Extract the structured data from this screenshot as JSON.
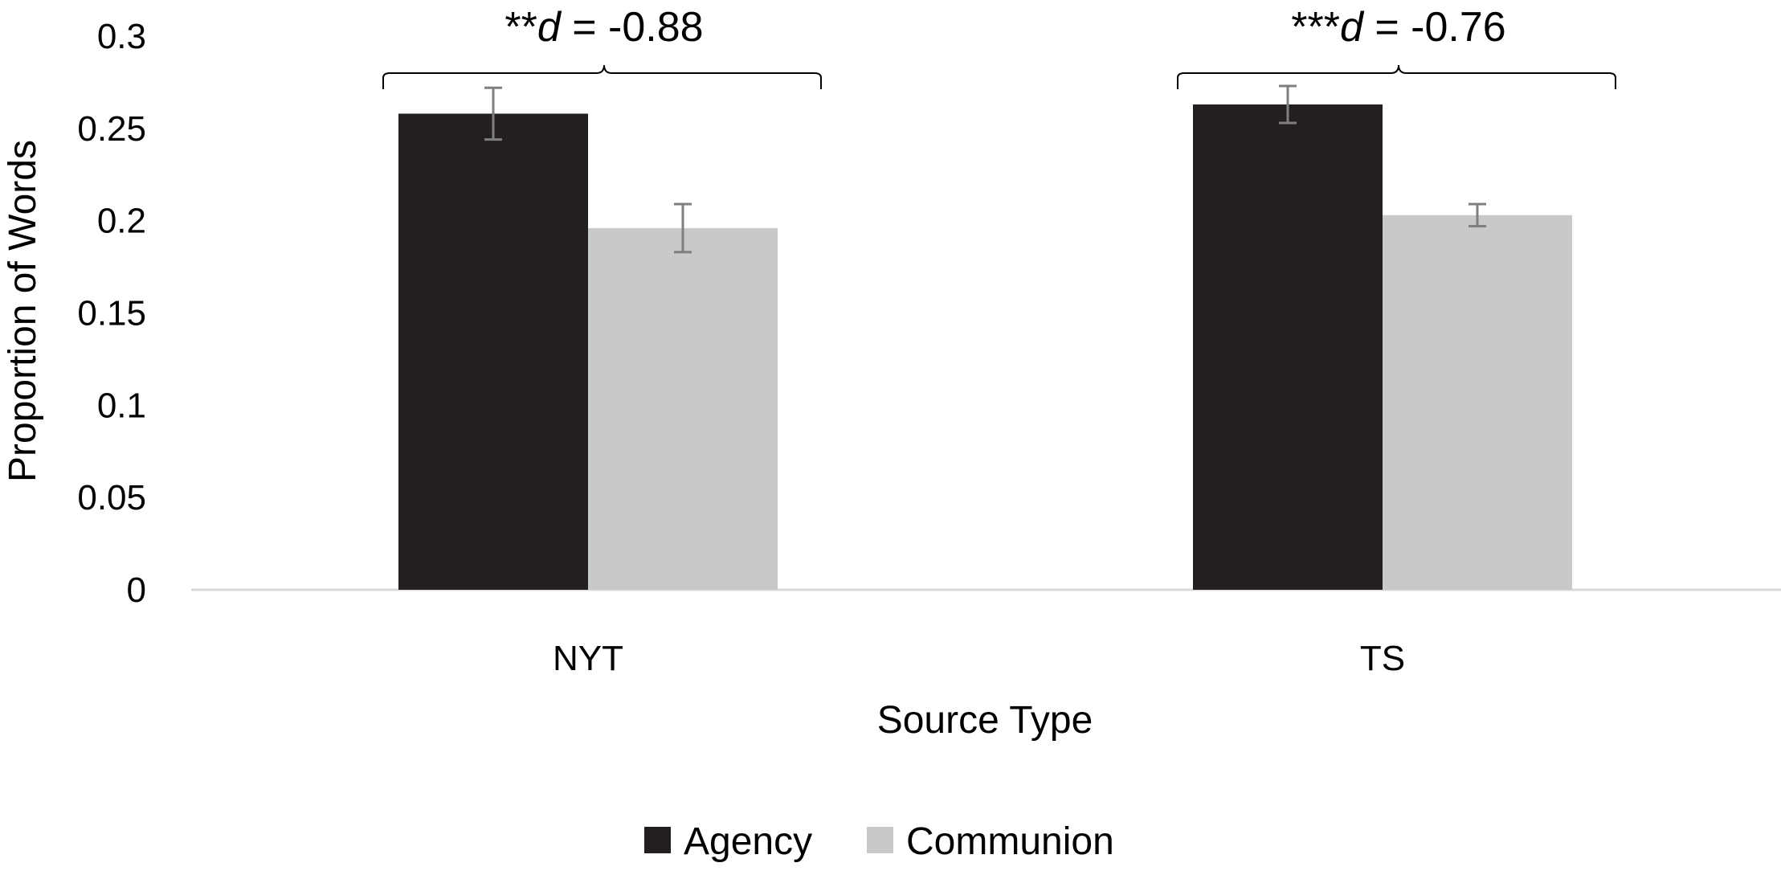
{
  "chart_data": {
    "type": "bar",
    "categories": [
      "NYT",
      "TS"
    ],
    "series": [
      {
        "name": "Agency",
        "color": "#231f20",
        "values": [
          0.258,
          0.263
        ],
        "errors": [
          0.014,
          0.01
        ]
      },
      {
        "name": "Communion",
        "color": "#c8c9ca",
        "values": [
          0.196,
          0.203
        ],
        "errors": [
          0.013,
          0.006
        ]
      }
    ],
    "ylim": [
      0,
      0.3
    ],
    "yticks": [
      "0",
      "0.05",
      "0.1",
      "0.15",
      "0.2",
      "0.25",
      "0.3"
    ],
    "ylabel": "Proportion of Words",
    "xlabel": "Source Type",
    "grid": false,
    "legend": "bottom-center",
    "annotations": [
      {
        "category": "NYT",
        "stars": "**",
        "d_label": "d",
        "eq": " = -0.88"
      },
      {
        "category": "TS",
        "stars": "***",
        "d_label": "d",
        "eq": " = -0.76"
      }
    ]
  }
}
